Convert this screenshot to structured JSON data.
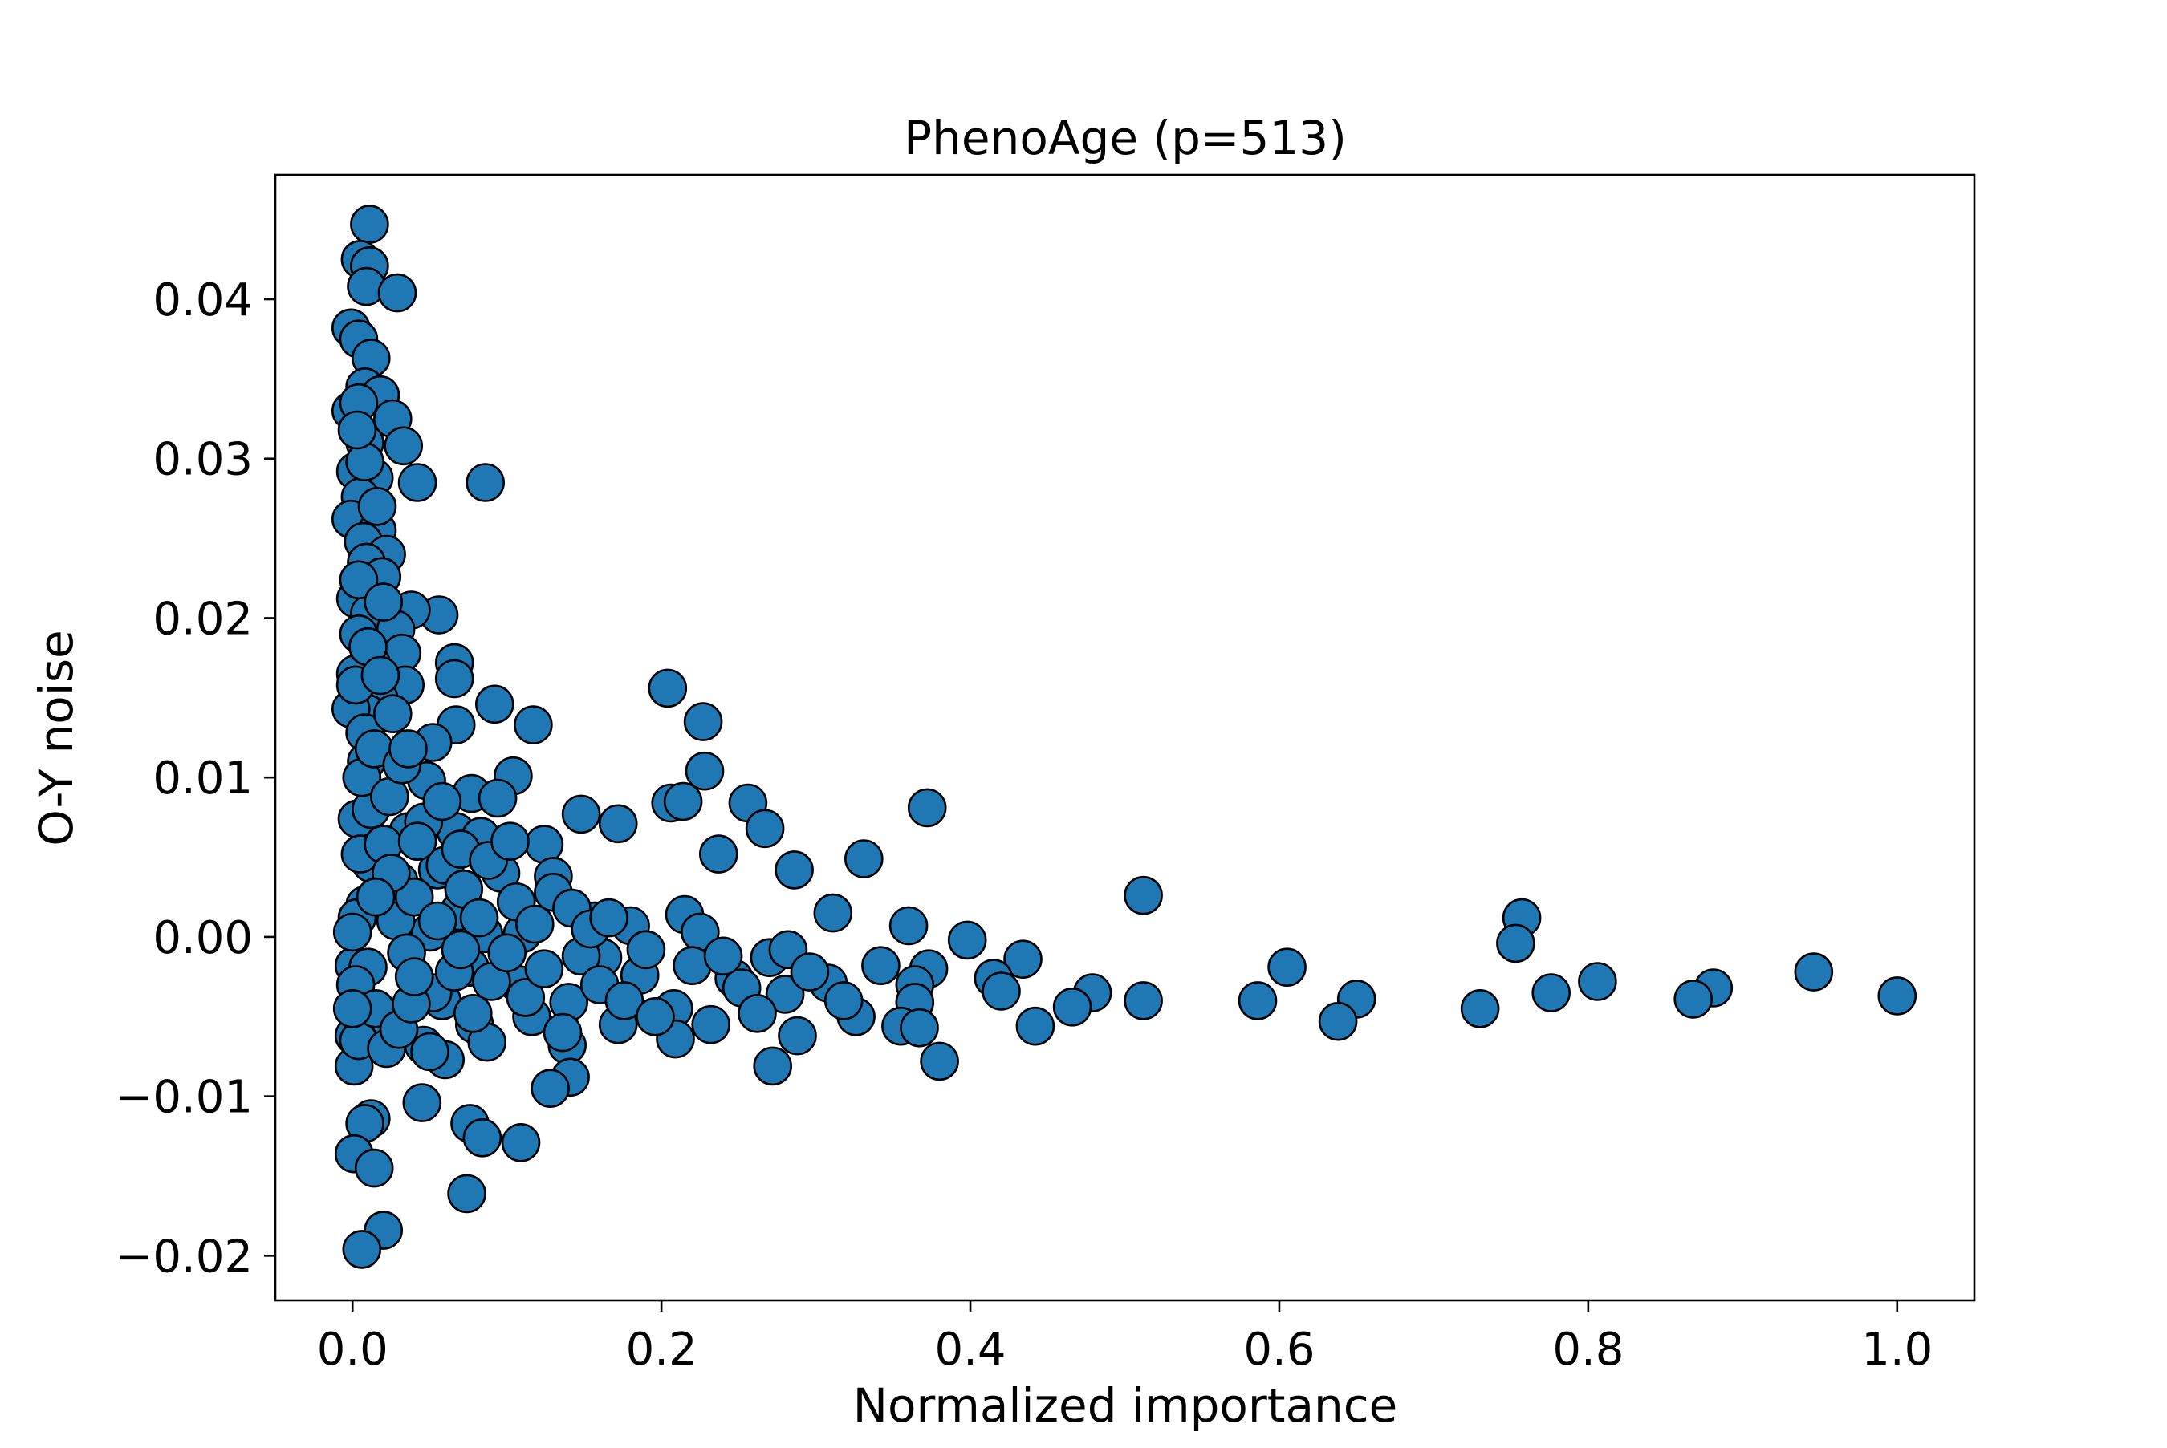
{
  "chart_data": {
    "type": "scatter",
    "title": "PhenoAge (p=513)",
    "xlabel": "Normalized importance",
    "ylabel": "O-Y noise",
    "xlim": [
      -0.05,
      1.05
    ],
    "ylim": [
      -0.0228,
      0.0478
    ],
    "xticks": [
      0.0,
      0.2,
      0.4,
      0.6,
      0.8,
      1.0
    ],
    "xtick_labels": [
      "0.0",
      "0.2",
      "0.4",
      "0.6",
      "0.8",
      "1.0"
    ],
    "yticks": [
      -0.02,
      -0.01,
      0.0,
      0.01,
      0.02,
      0.03,
      0.04
    ],
    "ytick_labels": [
      "−0.02",
      "−0.01",
      "0.00",
      "0.01",
      "0.02",
      "0.03",
      "0.04"
    ],
    "grid": false,
    "legend": false,
    "marker_color": "#1f77b4",
    "marker_edge_color": "#000000",
    "points": [
      [
        0.011,
        0.0447
      ],
      [
        0.005,
        0.0425
      ],
      [
        0.011,
        0.0421
      ],
      [
        0.009,
        0.0408
      ],
      [
        0.029,
        0.0404
      ],
      [
        -0.001,
        0.0382
      ],
      [
        0.004,
        0.0375
      ],
      [
        0.012,
        0.0363
      ],
      [
        0.008,
        0.0345
      ],
      [
        0.018,
        0.034
      ],
      [
        -0.001,
        0.033
      ],
      [
        0.004,
        0.0335
      ],
      [
        0.026,
        0.0325
      ],
      [
        0.008,
        0.031
      ],
      [
        0.033,
        0.0308
      ],
      [
        0.086,
        0.0285
      ],
      [
        0.042,
        0.0285
      ],
      [
        0.002,
        0.0292
      ],
      [
        0.014,
        0.0288
      ],
      [
        0.005,
        0.0276
      ],
      [
        -0.001,
        0.0262
      ],
      [
        0.016,
        0.0255
      ],
      [
        0.007,
        0.0248
      ],
      [
        0.022,
        0.024
      ],
      [
        0.009,
        0.0235
      ],
      [
        0.019,
        0.0226
      ],
      [
        0.002,
        0.0212
      ],
      [
        0.056,
        0.0202
      ],
      [
        0.038,
        0.0205
      ],
      [
        0.011,
        0.0203
      ],
      [
        0.004,
        0.019
      ],
      [
        0.028,
        0.0193
      ],
      [
        0.032,
        0.0178
      ],
      [
        0.066,
        0.0172
      ],
      [
        0.012,
        0.0172
      ],
      [
        0.066,
        0.0162
      ],
      [
        0.002,
        0.0165
      ],
      [
        0.034,
        0.0158
      ],
      [
        0.204,
        0.0156
      ],
      [
        0.017,
        0.015
      ],
      [
        0.092,
        0.0146
      ],
      [
        0.01,
        0.014
      ],
      [
        0.227,
        0.0135
      ],
      [
        0.117,
        0.0133
      ],
      [
        0.067,
        0.0133
      ],
      [
        -0.001,
        0.0143
      ],
      [
        0.052,
        0.0122
      ],
      [
        0.008,
        0.0128
      ],
      [
        0.228,
        0.0104
      ],
      [
        0.104,
        0.0101
      ],
      [
        0.009,
        0.011
      ],
      [
        0.048,
        0.0098
      ],
      [
        0.077,
        0.009
      ],
      [
        0.094,
        0.0087
      ],
      [
        0.206,
        0.0084
      ],
      [
        0.256,
        0.0084
      ],
      [
        0.214,
        0.0085
      ],
      [
        0.372,
        0.0081
      ],
      [
        0.148,
        0.0077
      ],
      [
        0.003,
        0.0074
      ],
      [
        0.172,
        0.0071
      ],
      [
        0.267,
        0.0068
      ],
      [
        0.067,
        0.0066
      ],
      [
        0.036,
        0.0066
      ],
      [
        0.083,
        0.0063
      ],
      [
        0.124,
        0.0058
      ],
      [
        0.237,
        0.0052
      ],
      [
        0.331,
        0.0049
      ],
      [
        0.012,
        0.0046
      ],
      [
        0.055,
        0.0042
      ],
      [
        0.286,
        0.0042
      ],
      [
        0.13,
        0.0038
      ],
      [
        0.03,
        0.0035
      ],
      [
        0.512,
        0.0026
      ],
      [
        0.008,
        0.002
      ],
      [
        0.069,
        0.0016
      ],
      [
        0.311,
        0.0015
      ],
      [
        0.215,
        0.0014
      ],
      [
        0.003,
        0.0012
      ],
      [
        0.757,
        0.0012
      ],
      [
        0.157,
        0.001
      ],
      [
        0.18,
        0.0007
      ],
      [
        0.36,
        0.0007
      ],
      [
        0.225,
        0.0003
      ],
      [
        0.05,
        0.0003
      ],
      [
        0.11,
        0.0002
      ],
      [
        0.085,
        0.0002
      ],
      [
        0.398,
        -0.0002
      ],
      [
        0.753,
        -0.0004
      ],
      [
        0.162,
        -0.0013
      ],
      [
        0.27,
        -0.0013
      ],
      [
        0.434,
        -0.0014
      ],
      [
        0.001,
        -0.0018
      ],
      [
        0.076,
        -0.0019
      ],
      [
        0.605,
        -0.0019
      ],
      [
        0.946,
        -0.0022
      ],
      [
        0.373,
        -0.002
      ],
      [
        0.342,
        -0.0018
      ],
      [
        0.01,
        -0.0019
      ],
      [
        0.186,
        -0.0024
      ],
      [
        0.415,
        -0.0026
      ],
      [
        0.247,
        -0.0026
      ],
      [
        0.364,
        -0.003
      ],
      [
        0.806,
        -0.0028
      ],
      [
        0.308,
        -0.0029
      ],
      [
        0.002,
        -0.003
      ],
      [
        0.108,
        -0.003
      ],
      [
        0.479,
        -0.0035
      ],
      [
        0.776,
        -0.0035
      ],
      [
        0.881,
        -0.0032
      ],
      [
        0.28,
        -0.0036
      ],
      [
        0.42,
        -0.0034
      ],
      [
        1.0,
        -0.0037
      ],
      [
        0.868,
        -0.0039
      ],
      [
        0.512,
        -0.004
      ],
      [
        0.586,
        -0.004
      ],
      [
        0.65,
        -0.0039
      ],
      [
        0.058,
        -0.004
      ],
      [
        0.14,
        -0.0041
      ],
      [
        0.364,
        -0.0041
      ],
      [
        0.466,
        -0.0044
      ],
      [
        0.208,
        -0.0045
      ],
      [
        0.73,
        -0.0045
      ],
      [
        0.116,
        -0.005
      ],
      [
        0.326,
        -0.005
      ],
      [
        0.638,
        -0.0053
      ],
      [
        0.012,
        -0.0055
      ],
      [
        0.079,
        -0.0055
      ],
      [
        0.172,
        -0.0055
      ],
      [
        0.355,
        -0.0056
      ],
      [
        0.442,
        -0.0056
      ],
      [
        0.367,
        -0.0057
      ],
      [
        0.001,
        -0.0062
      ],
      [
        0.288,
        -0.0062
      ],
      [
        0.209,
        -0.0064
      ],
      [
        0.087,
        -0.0066
      ],
      [
        0.139,
        -0.0068
      ],
      [
        0.046,
        -0.0068
      ],
      [
        0.06,
        -0.0077
      ],
      [
        0.38,
        -0.0078
      ],
      [
        0.272,
        -0.0081
      ],
      [
        0.001,
        -0.0081
      ],
      [
        0.141,
        -0.0088
      ],
      [
        0.128,
        -0.0095
      ],
      [
        0.045,
        -0.0104
      ],
      [
        0.012,
        -0.0114
      ],
      [
        0.008,
        -0.0117
      ],
      [
        0.076,
        -0.0117
      ],
      [
        0.084,
        -0.0126
      ],
      [
        0.109,
        -0.0129
      ],
      [
        0.001,
        -0.0136
      ],
      [
        0.014,
        -0.0145
      ],
      [
        0.074,
        -0.0161
      ],
      [
        0.02,
        -0.0184
      ],
      [
        0.006,
        -0.0196
      ],
      [
        0.0,
        0.0003
      ],
      [
        0.005,
        0.0052
      ],
      [
        0.012,
        0.008
      ],
      [
        0.02,
        0.0058
      ],
      [
        0.028,
        0.001
      ],
      [
        0.035,
        -0.001
      ],
      [
        0.04,
        0.0025
      ],
      [
        0.046,
        0.0072
      ],
      [
        0.052,
        -0.0035
      ],
      [
        0.06,
        0.0045
      ],
      [
        0.066,
        -0.0022
      ],
      [
        0.072,
        0.003
      ],
      [
        0.078,
        -0.0048
      ],
      [
        0.082,
        0.0012
      ],
      [
        0.09,
        -0.0028
      ],
      [
        0.096,
        0.004
      ],
      [
        0.1,
        -0.001
      ],
      [
        0.106,
        0.0022
      ],
      [
        0.112,
        -0.0038
      ],
      [
        0.118,
        0.0008
      ],
      [
        0.124,
        -0.002
      ],
      [
        0.13,
        0.0028
      ],
      [
        0.136,
        -0.006
      ],
      [
        0.142,
        0.0018
      ],
      [
        0.148,
        -0.0012
      ],
      [
        0.154,
        0.0005
      ],
      [
        0.16,
        -0.003
      ],
      [
        0.166,
        0.0012
      ],
      [
        0.176,
        -0.004
      ],
      [
        0.19,
        -0.0008
      ],
      [
        0.196,
        -0.005
      ],
      [
        0.22,
        -0.0018
      ],
      [
        0.232,
        -0.0055
      ],
      [
        0.24,
        -0.0012
      ],
      [
        0.252,
        -0.0032
      ],
      [
        0.262,
        -0.0048
      ],
      [
        0.282,
        -0.0008
      ],
      [
        0.296,
        -0.0022
      ],
      [
        0.318,
        -0.004
      ],
      [
        0.004,
        -0.0065
      ],
      [
        0.015,
        -0.0045
      ],
      [
        0.022,
        -0.007
      ],
      [
        0.03,
        -0.0058
      ],
      [
        0.038,
        -0.0042
      ],
      [
        0.05,
        -0.0072
      ],
      [
        0.006,
        0.01
      ],
      [
        0.014,
        0.0118
      ],
      [
        0.024,
        0.0088
      ],
      [
        0.032,
        0.0108
      ],
      [
        0.042,
        0.006
      ],
      [
        0.002,
        0.0158
      ],
      [
        0.01,
        0.0182
      ],
      [
        0.018,
        0.0164
      ],
      [
        0.026,
        0.014
      ],
      [
        0.004,
        0.0224
      ],
      [
        0.016,
        0.027
      ],
      [
        0.008,
        0.0298
      ],
      [
        0.003,
        0.0318
      ],
      [
        0.02,
        0.021
      ],
      [
        0.036,
        0.0118
      ],
      [
        0.058,
        0.0085
      ],
      [
        0.07,
        0.0055
      ],
      [
        0.088,
        0.0048
      ],
      [
        0.102,
        0.006
      ],
      [
        0.07,
        -0.0008
      ],
      [
        0.055,
        0.001
      ],
      [
        0.04,
        -0.0025
      ],
      [
        0.025,
        0.004
      ],
      [
        0.015,
        0.0025
      ],
      [
        0.0,
        -0.0045
      ]
    ]
  }
}
